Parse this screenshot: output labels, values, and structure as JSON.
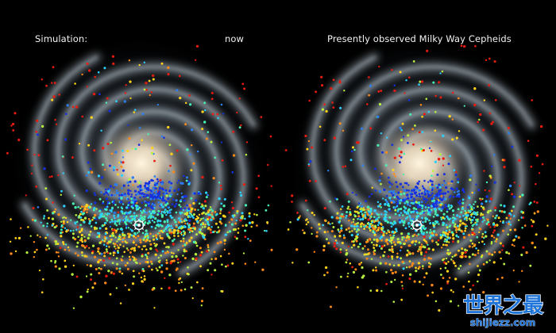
{
  "panels": {
    "left_title": "Simulation:",
    "left_subtitle": "now",
    "right_title": "Presently observed Milky Way Cepheids"
  },
  "watermark": {
    "title": "世界之最",
    "url": "shijiezz.com"
  },
  "colors": {
    "background": "#000000",
    "galaxy_core": "#fff1d6",
    "galaxy_arms": "#a9bcc9",
    "cepheid_palette": [
      "#1530e0",
      "#2b7ff0",
      "#2ad0ff",
      "#48f0b0",
      "#b8f040",
      "#ffd21c",
      "#ff8a18",
      "#e81c10"
    ],
    "sun_marker": "#ffffff",
    "watermark": "#1e74d8"
  },
  "icons": {
    "sun_marker": "sun-position-icon"
  }
}
